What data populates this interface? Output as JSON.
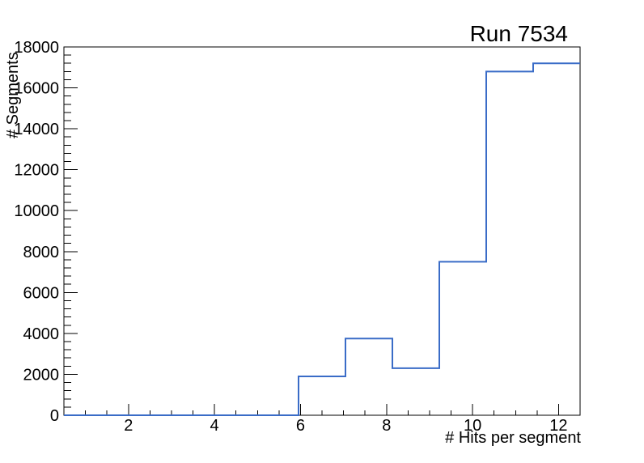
{
  "window": {
    "background_color": "#ffffff"
  },
  "chart_data": {
    "type": "bar",
    "style": "step-histogram-outline",
    "title": "Run 7534",
    "xlabel": "# Hits per segment",
    "ylabel": "# Segments",
    "xlim": [
      0.5,
      12.5
    ],
    "ylim": [
      0,
      18000
    ],
    "bin_edges": [
      0.5,
      1.5909,
      2.6818,
      3.7727,
      4.8636,
      5.9545,
      7.0455,
      8.1364,
      9.2273,
      10.3182,
      11.4091,
      12.5
    ],
    "values": [
      0,
      0,
      0,
      0,
      0,
      1900,
      3750,
      2300,
      7500,
      16800,
      17200
    ],
    "x_major_ticks": [
      2,
      4,
      6,
      8,
      10,
      12
    ],
    "x_minor_tick_step": 0.5,
    "y_major_ticks": [
      0,
      2000,
      4000,
      6000,
      8000,
      10000,
      12000,
      14000,
      16000,
      18000
    ],
    "y_minor_tick_step": 400,
    "line_color": "#3a6cc7",
    "axis_color": "#000000",
    "text_color": "#000000",
    "grid": false,
    "legend_position": "none"
  }
}
